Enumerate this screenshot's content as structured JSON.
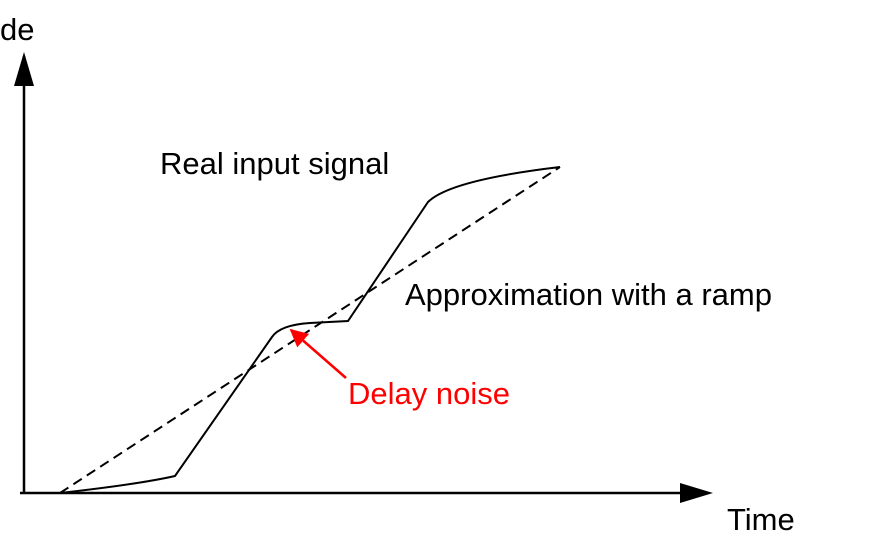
{
  "axes": {
    "y_label": "de",
    "x_label": "Time"
  },
  "labels": {
    "real_signal": "Real input signal",
    "ramp": "Approximation with a ramp",
    "delay_noise": "Delay noise"
  }
}
